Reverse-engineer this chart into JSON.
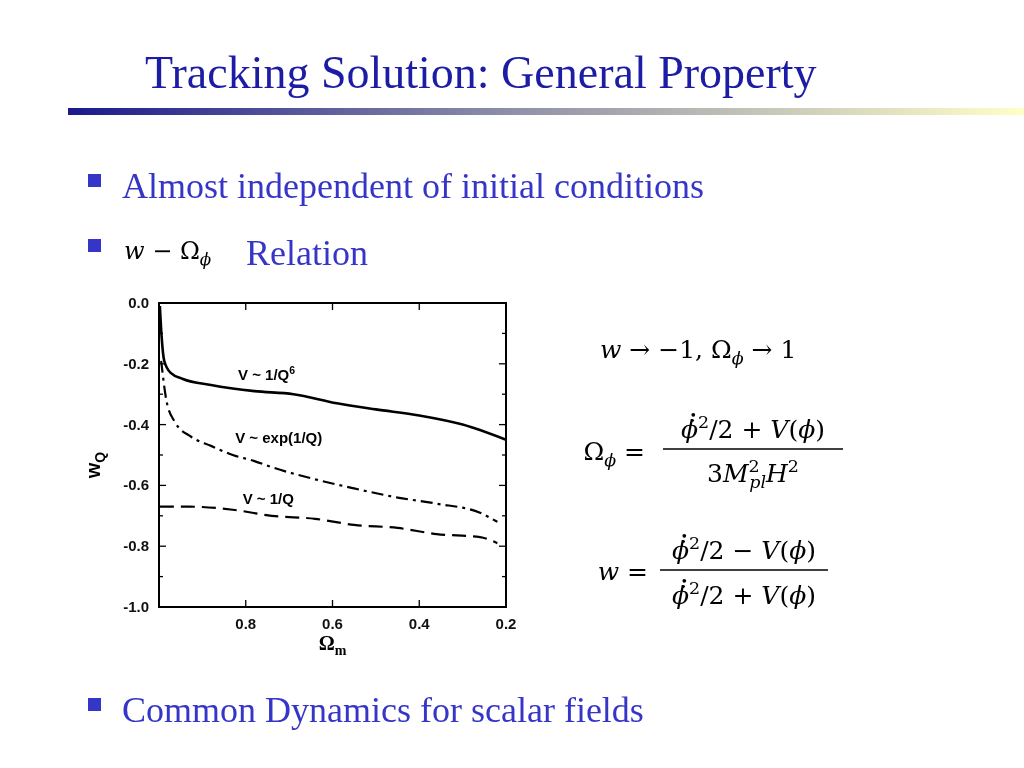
{
  "chart_data": {
    "type": "line",
    "title": "Tracking Solution: General Property",
    "annotations": [
      "Almost independent of initial conditions",
      "w − Ω$_{ϕ}$",
      "Relation",
      "w → −1,  Ω$_{ϕ}$ → 1",
      "Ω$_{ϕ}$ =",
      "ϕ̇$^{2}$/2 + V(ϕ)",
      "3M$^{2}$$_{pl}$H$^{2}$",
      "w =",
      "ϕ̇$^{2}$/2 − V(ϕ)",
      "ϕ̇$^{2}$/2 + V(ϕ)",
      "Common Dynamics for scalar fields"
    ],
    "xlabel": "Ω$_{m}$",
    "ylabel": "w$_{Q}$",
    "xlim": [
      1,
      0.2
    ],
    "xticks": [
      0.8,
      0.6,
      0.4,
      0.2
    ],
    "ylim": [
      -1,
      0
    ],
    "yticks": [
      {
        "value": 0,
        "label": "0.0"
      },
      {
        "value": -0.1,
        "label": null
      },
      -0.2,
      {
        "value": -0.3,
        "label": null
      },
      -0.4,
      {
        "value": -0.5,
        "label": null
      },
      -0.6,
      {
        "value": -0.7,
        "label": null
      },
      -0.8,
      {
        "value": -0.9,
        "label": null
      },
      {
        "value": -1,
        "label": "-1.0"
      }
    ],
    "series": [
      {
        "name": "V ~ 1/Q$^{6}$",
        "color": "#000000",
        "line_style": "solid",
        "x": [
          0.998,
          0.994,
          0.988,
          0.973,
          0.945,
          0.88,
          0.78,
          0.69,
          0.59,
          0.5,
          0.4,
          0.3,
          0.2
        ],
        "values": [
          -0.01,
          -0.11,
          -0.19,
          -0.23,
          -0.25,
          -0.27,
          -0.29,
          -0.3,
          -0.33,
          -0.35,
          -0.37,
          -0.4,
          -0.45
        ]
      },
      {
        "name": "V ~ exp(1/Q)",
        "color": "#000000",
        "line_style": "dashdot",
        "x": [
          0.995,
          0.983,
          0.964,
          0.926,
          0.88,
          0.83,
          0.78,
          0.74,
          0.64,
          0.55,
          0.45,
          0.36,
          0.26,
          0.22
        ],
        "values": [
          -0.19,
          -0.32,
          -0.39,
          -0.44,
          -0.47,
          -0.5,
          -0.52,
          -0.54,
          -0.58,
          -0.61,
          -0.64,
          -0.66,
          -0.69,
          -0.72
        ]
      },
      {
        "name": "V ~ 1/Q",
        "color": "#000000",
        "line_style": "dashed",
        "x": [
          0.998,
          0.93,
          0.83,
          0.74,
          0.64,
          0.55,
          0.45,
          0.36,
          0.26,
          0.22
        ],
        "values": [
          -0.67,
          -0.67,
          -0.68,
          -0.7,
          -0.71,
          -0.73,
          -0.74,
          -0.76,
          -0.77,
          -0.79
        ]
      }
    ]
  }
}
